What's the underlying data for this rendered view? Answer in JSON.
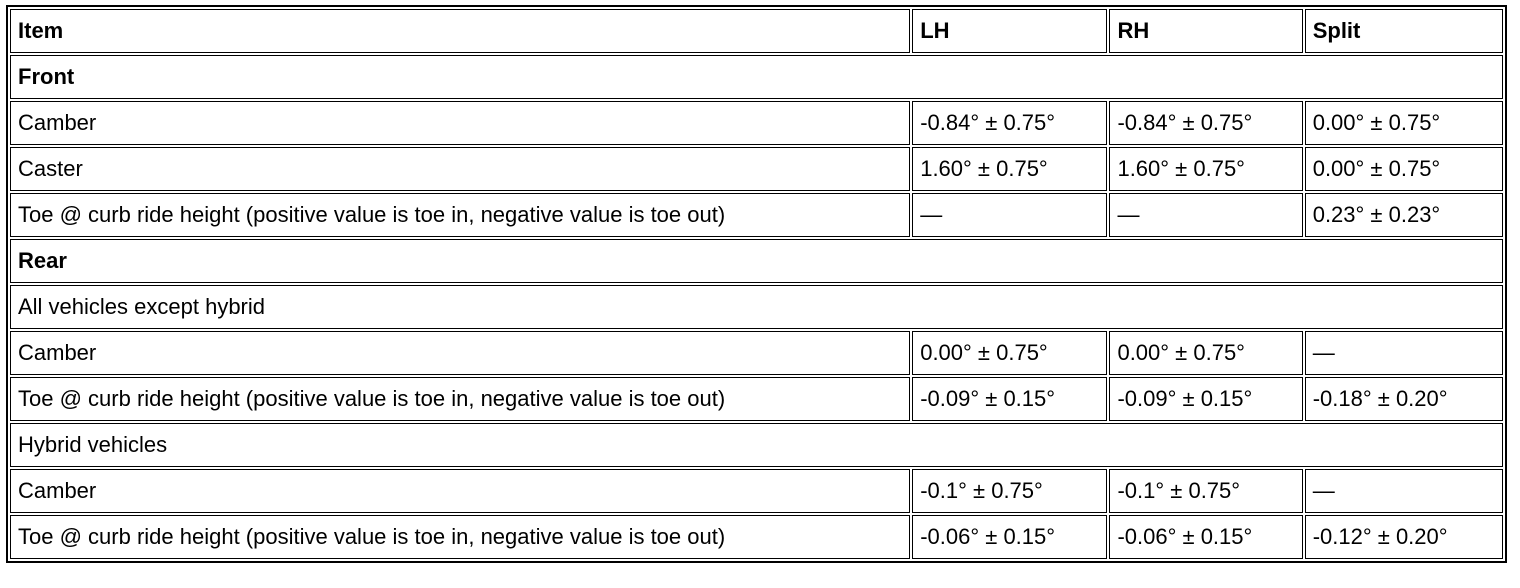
{
  "table": {
    "header": [
      "Item",
      "LH",
      "RH",
      "Split"
    ],
    "rows": [
      {
        "section": "Front",
        "bold": true
      },
      [
        "Camber",
        "-0.84° ± 0.75°",
        "-0.84° ± 0.75°",
        "0.00° ± 0.75°"
      ],
      [
        "Caster",
        "1.60° ± 0.75°",
        "1.60° ± 0.75°",
        "0.00° ± 0.75°"
      ],
      [
        "Toe @ curb ride height (positive value is toe in, negative value is toe out)",
        "—",
        "—",
        "0.23° ± 0.23°"
      ],
      {
        "section": "Rear",
        "bold": true
      },
      {
        "section": "All vehicles except hybrid",
        "bold": false
      },
      [
        "Camber",
        "0.00° ± 0.75°",
        "0.00° ± 0.75°",
        "—"
      ],
      [
        "Toe @ curb ride height (positive value is toe in, negative value is toe out)",
        "-0.09° ± 0.15°",
        "-0.09° ± 0.15°",
        "-0.18° ± 0.20°"
      ],
      {
        "section": "Hybrid vehicles",
        "bold": false
      },
      [
        "Camber",
        "-0.1° ± 0.75°",
        "-0.1° ± 0.75°",
        "—"
      ],
      [
        "Toe @ curb ride height (positive value is toe in, negative value is toe out)",
        "-0.06° ± 0.15°",
        "-0.06° ± 0.15°",
        "-0.12° ± 0.20°"
      ]
    ]
  }
}
